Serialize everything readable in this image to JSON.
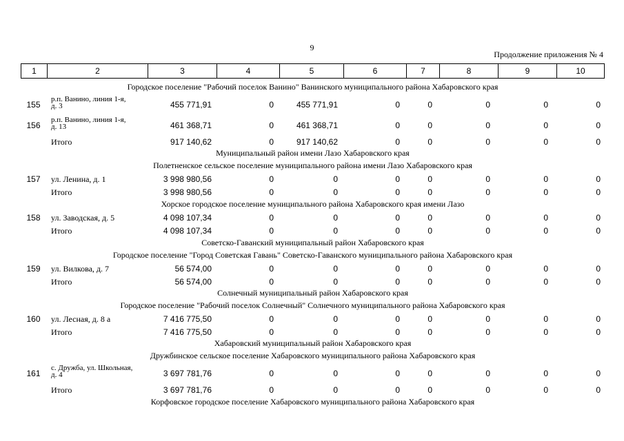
{
  "page_number": "9",
  "continuation": "Продолжение приложения № 4",
  "header_cols": [
    "1",
    "2",
    "3",
    "4",
    "5",
    "6",
    "7",
    "8",
    "9",
    "10"
  ],
  "sections": {
    "s1": "Городское поселение \"Рабочий поселок Ванино\" Ванинского муниципального района Хабаровского края",
    "s2": "Муниципальный район имени Лазо Хабаровского края",
    "s3": "Полетненское сельское поселение муниципального района имени Лазо Хабаровского края",
    "s4": "Хорское городское поселение муниципального района Хабаровского края имени Лазо",
    "s5": "Советско-Гаванский муниципальный район Хабаровского края",
    "s6": "Городское поселение \"Город Советская Гавань\" Советско-Гаванского муниципального района Хабаровского края",
    "s7": "Солнечный муниципальный район Хабаровского края",
    "s8": "Городское поселение \"Рабочий поселок Солнечный\" Солнечного муниципального района Хабаровского края",
    "s9": "Хабаровский муниципальный район Хабаровского края",
    "s10": "Дружбинское сельское поселение Хабаровского муниципального района Хабаровского края",
    "s11": "Корфовское городское поселение Хабаровского муниципального района Хабаровского края"
  },
  "rows": {
    "r155": {
      "n": "155",
      "addr1": "р.п. Ванино, линия 1-я,",
      "addr2": "д. 3",
      "c3": "455 771,91",
      "c4": "0",
      "c5": "455 771,91",
      "c6": "0",
      "c7": "0",
      "c8": "0",
      "c9": "0",
      "c10": "0"
    },
    "r156": {
      "n": "156",
      "addr1": "р.п. Ванино, линия 1-я,",
      "addr2": "д. 13",
      "c3": "461 368,71",
      "c4": "0",
      "c5": "461 368,71",
      "c6": "0",
      "c7": "0",
      "c8": "0",
      "c9": "0",
      "c10": "0"
    },
    "t1": {
      "label": "Итого",
      "c3": "917 140,62",
      "c4": "0",
      "c5": "917 140,62",
      "c6": "0",
      "c7": "0",
      "c8": "0",
      "c9": "0",
      "c10": "0"
    },
    "r157": {
      "n": "157",
      "addr": "ул. Ленина, д. 1",
      "c3": "3 998 980,56",
      "c4": "0",
      "c5": "0",
      "c6": "0",
      "c7": "0",
      "c8": "0",
      "c9": "0",
      "c10": "0"
    },
    "t2": {
      "label": "Итого",
      "c3": "3 998 980,56",
      "c4": "0",
      "c5": "0",
      "c6": "0",
      "c7": "0",
      "c8": "0",
      "c9": "0",
      "c10": "0"
    },
    "r158": {
      "n": "158",
      "addr": "ул. Заводская, д. 5",
      "c3": "4 098 107,34",
      "c4": "0",
      "c5": "0",
      "c6": "0",
      "c7": "0",
      "c8": "0",
      "c9": "0",
      "c10": "0"
    },
    "t3": {
      "label": "Итого",
      "c3": "4 098 107,34",
      "c4": "0",
      "c5": "0",
      "c6": "0",
      "c7": "0",
      "c8": "0",
      "c9": "0",
      "c10": "0"
    },
    "r159": {
      "n": "159",
      "addr": "ул. Вилкова, д. 7",
      "c3": "56 574,00",
      "c4": "0",
      "c5": "0",
      "c6": "0",
      "c7": "0",
      "c8": "0",
      "c9": "0",
      "c10": "0"
    },
    "t4": {
      "label": "Итого",
      "c3": "56 574,00",
      "c4": "0",
      "c5": "0",
      "c6": "0",
      "c7": "0",
      "c8": "0",
      "c9": "0",
      "c10": "0"
    },
    "r160": {
      "n": "160",
      "addr": " ул. Лесная, д. 8 а",
      "c3": "7 416 775,50",
      "c4": "0",
      "c5": "0",
      "c6": "0",
      "c7": "0",
      "c8": "0",
      "c9": "0",
      "c10": "0"
    },
    "t5": {
      "label": "Итого",
      "c3": "7 416 775,50",
      "c4": "0",
      "c5": "0",
      "c6": "0",
      "c7": "0",
      "c8": "0",
      "c9": "0",
      "c10": "0"
    },
    "r161": {
      "n": "161",
      "addr1": "с. Дружба, ул. Школьная,",
      "addr2": "д. 4",
      "c3": "3 697 781,76",
      "c4": "0",
      "c5": "0",
      "c6": "0",
      "c7": "0",
      "c8": "0",
      "c9": "0",
      "c10": "0"
    },
    "t6": {
      "label": "Итого",
      "c3": "3 697 781,76",
      "c4": "0",
      "c5": "0",
      "c6": "0",
      "c7": "0",
      "c8": "0",
      "c9": "0",
      "c10": "0"
    }
  }
}
